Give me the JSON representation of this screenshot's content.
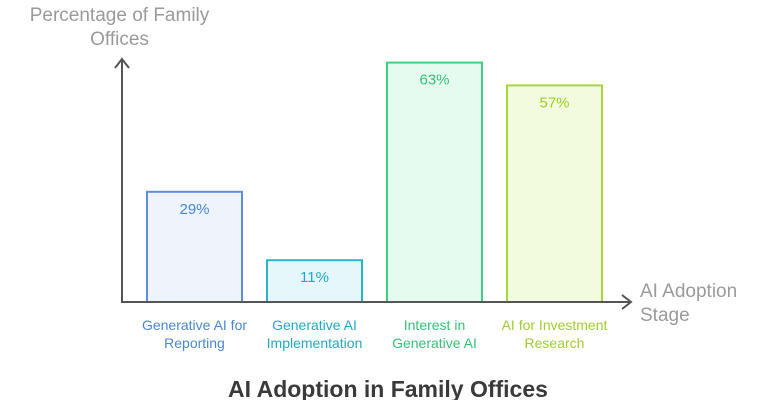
{
  "chart_data": {
    "type": "bar",
    "title": "AI Adoption in Family Offices",
    "xlabel": "AI Adoption Stage",
    "ylabel": "Percentage of Family Offices",
    "ylim": [
      0,
      65
    ],
    "grid": false,
    "categories": [
      "Generative AI for Reporting",
      "Generative AI Implementation",
      "Interest in Generative AI",
      "AI for Investment Research"
    ],
    "values": [
      29,
      11,
      63,
      57
    ],
    "data_labels": [
      "29%",
      "11%",
      "63%",
      "57%"
    ],
    "colors": {
      "fill": [
        "#eef3fc",
        "#e6f7fb",
        "#e6fbef",
        "#f3fbdf"
      ],
      "stroke": [
        "#5b8ee0",
        "#2bb3cf",
        "#3fcf82",
        "#a8d63a"
      ],
      "label": [
        "#4a86d8",
        "#21a9c6",
        "#33c277",
        "#9fcd2e"
      ],
      "axis": "#555555"
    }
  }
}
